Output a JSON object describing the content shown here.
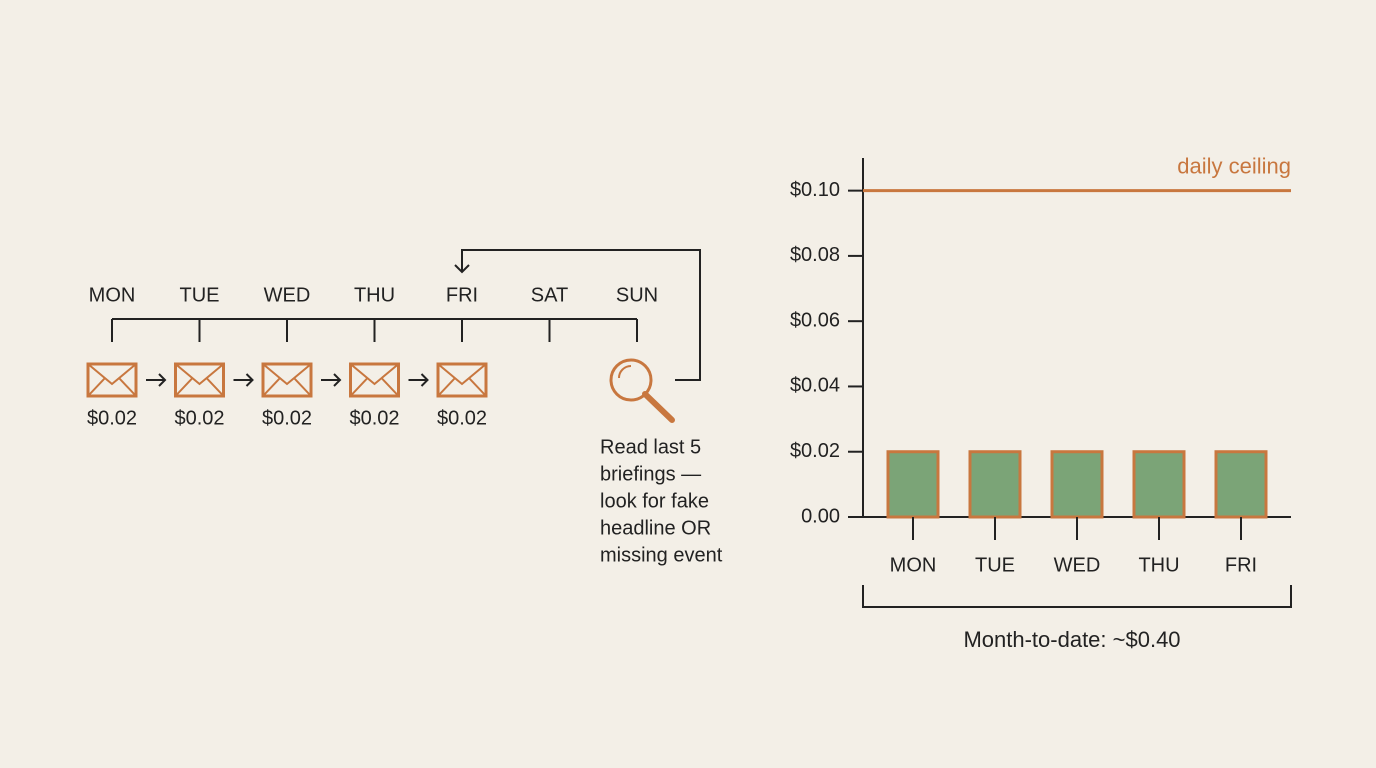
{
  "timeline": {
    "days": [
      "MON",
      "TUE",
      "WED",
      "THU",
      "FRI",
      "SAT",
      "SUN"
    ],
    "costs": [
      "$0.02",
      "$0.02",
      "$0.02",
      "$0.02",
      "$0.02"
    ],
    "note": [
      "Read last 5",
      "briefings —",
      "look for fake",
      "headline OR",
      "missing event"
    ]
  },
  "chart_data": {
    "type": "bar",
    "categories": [
      "MON",
      "TUE",
      "WED",
      "THU",
      "FRI"
    ],
    "values": [
      0.02,
      0.02,
      0.02,
      0.02,
      0.02
    ],
    "color": "#7ba477",
    "edge_color": "#c8773f",
    "ylim": [
      0,
      0.11
    ],
    "yticks": [
      {
        "value": 0,
        "label": "0.00"
      },
      {
        "value": 0.02,
        "label": "$0.02"
      },
      {
        "value": 0.04,
        "label": "$0.04"
      },
      {
        "value": 0.06,
        "label": "$0.06"
      },
      {
        "value": 0.08,
        "label": "$0.08"
      },
      {
        "value": 0.1,
        "label": "$0.10"
      }
    ],
    "ceiling": {
      "value": 0.1,
      "label": "daily ceiling",
      "color": "#c8773f"
    },
    "caption": "Month-to-date: ~$0.40"
  }
}
